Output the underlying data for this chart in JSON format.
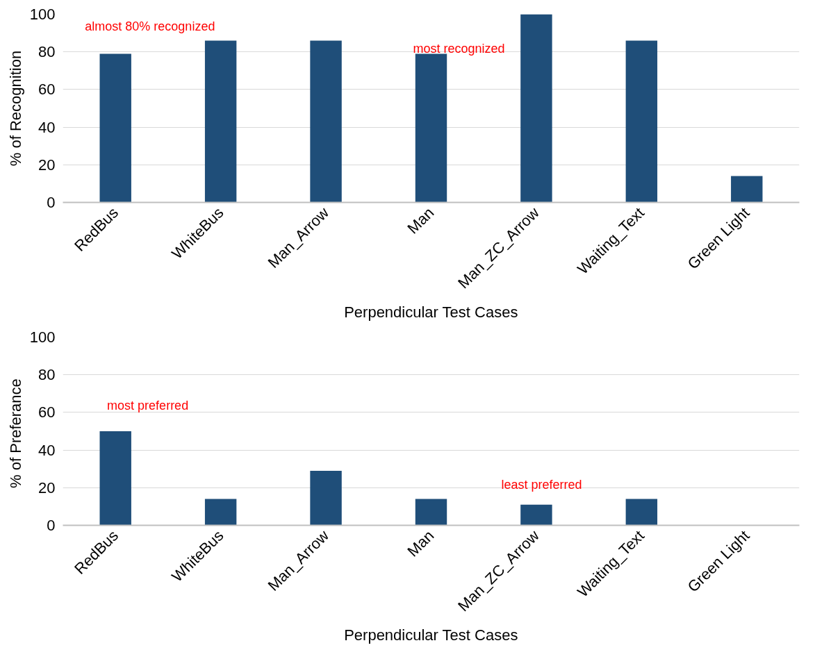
{
  "chart_data": [
    {
      "type": "bar",
      "xlabel": "Perpendicular Test Cases",
      "ylabel": "% of Recognition",
      "categories": [
        "RedBus",
        "WhiteBus",
        "Man_Arrow",
        "Man",
        "Man_ZC_Arrow",
        "Waiting_Text",
        "Green Light"
      ],
      "values": [
        79,
        86,
        86,
        79,
        100,
        86,
        14
      ],
      "color": "#1f4e79",
      "ylim": [
        0,
        100
      ],
      "yticks": [
        0,
        20,
        40,
        60,
        80,
        100
      ],
      "grid": "y",
      "annotations": [
        "almost 80% recognized",
        "most recognized"
      ]
    },
    {
      "type": "bar",
      "xlabel": "Perpendicular Test Cases",
      "ylabel": "% of  Preferance",
      "categories": [
        "RedBus",
        "WhiteBus",
        "Man_Arrow",
        "Man",
        "Man_ZC_Arrow",
        "Waiting_Text",
        "Green Light"
      ],
      "values": [
        50,
        14,
        29,
        14,
        11,
        14,
        0
      ],
      "color": "#1f4e79",
      "ylim": [
        0,
        100
      ],
      "yticks": [
        0,
        20,
        40,
        60,
        80,
        100
      ],
      "grid": "y",
      "annotations": [
        "most preferred",
        "least preferred"
      ]
    }
  ]
}
